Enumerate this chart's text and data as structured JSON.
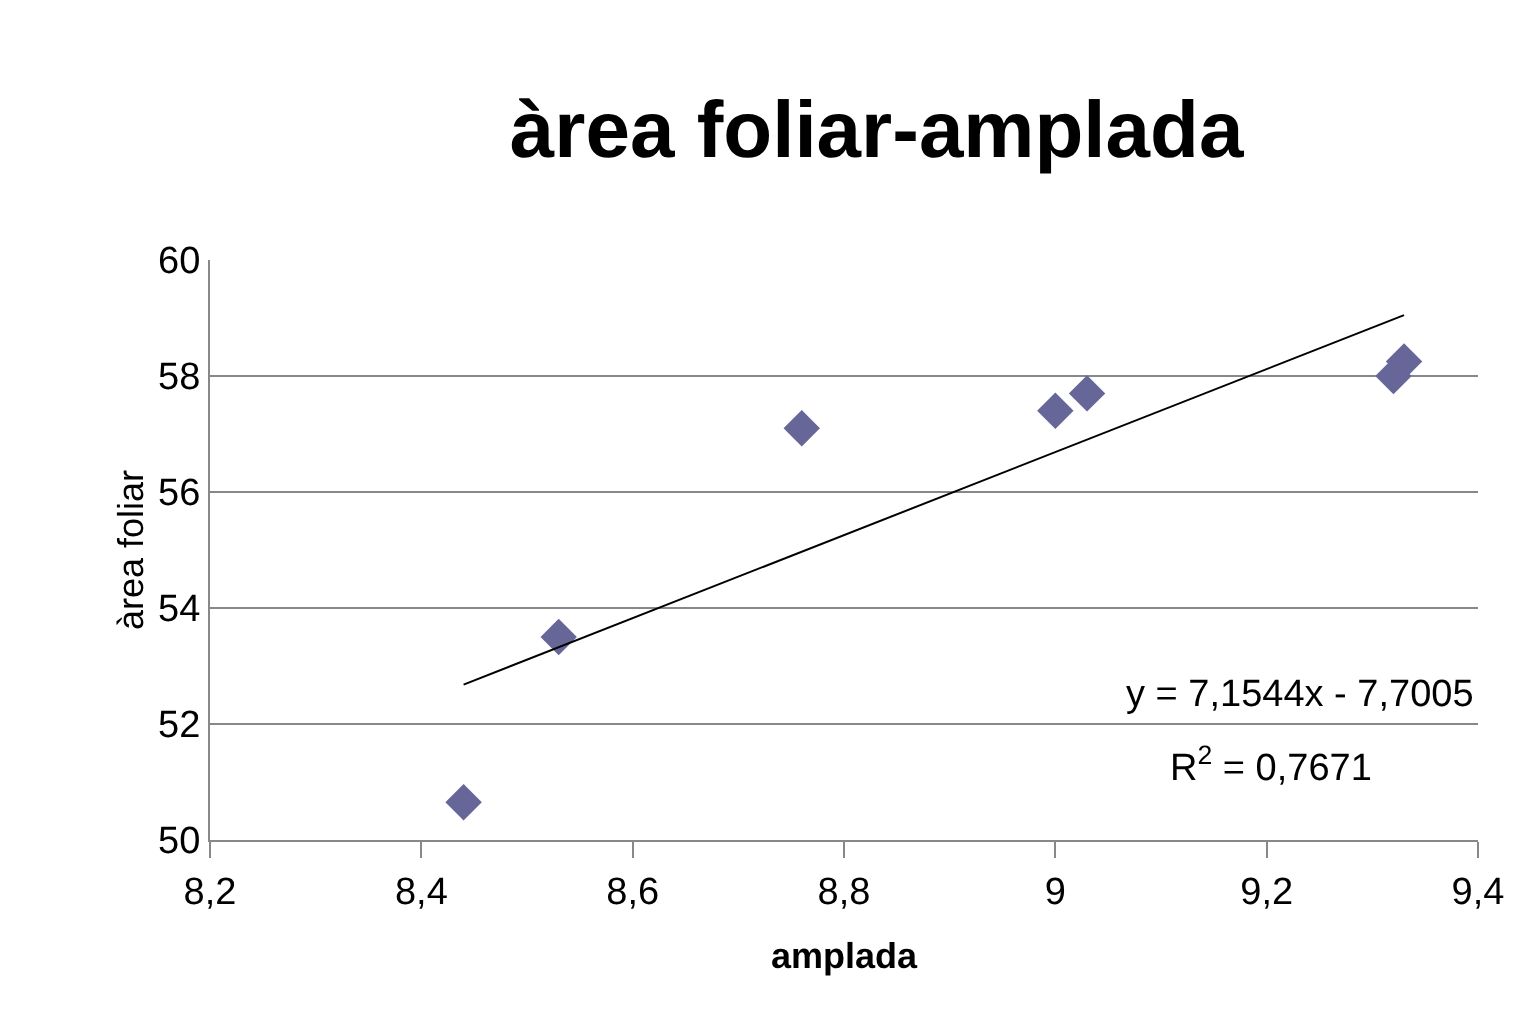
{
  "chart_data": {
    "type": "scatter",
    "title": "àrea foliar-amplada",
    "xlabel": "amplada",
    "ylabel": "àrea foliar",
    "marker": "diamond",
    "grid": "y",
    "xlim": [
      8.2,
      9.4
    ],
    "ylim": [
      50,
      60
    ],
    "xticks": [
      {
        "value": 8.2,
        "label": "8,2"
      },
      {
        "value": 8.4,
        "label": "8,4"
      },
      {
        "value": 8.6,
        "label": "8,6"
      },
      {
        "value": 8.8,
        "label": "8,8"
      },
      9,
      {
        "value": 9.2,
        "label": "9,2"
      },
      {
        "value": 9.4,
        "label": "9,4"
      }
    ],
    "yticks": [
      50,
      52,
      54,
      56,
      58,
      60
    ],
    "series": [
      {
        "color": "#666699",
        "x": [
          8.44,
          8.53,
          8.76,
          9.0,
          9.03,
          9.32,
          9.33
        ],
        "values": [
          50.65,
          53.5,
          57.1,
          57.4,
          57.7,
          58.0,
          58.25
        ]
      },
      {
        "type": "line",
        "color": "#000000",
        "marker": "none",
        "x": [
          8.44,
          9.33
        ],
        "values": [
          52.68,
          59.05
        ]
      }
    ],
    "annotations": [
      "y = 7,1544x - 7,7005",
      "R$^{2}$ = 0,7671"
    ]
  }
}
